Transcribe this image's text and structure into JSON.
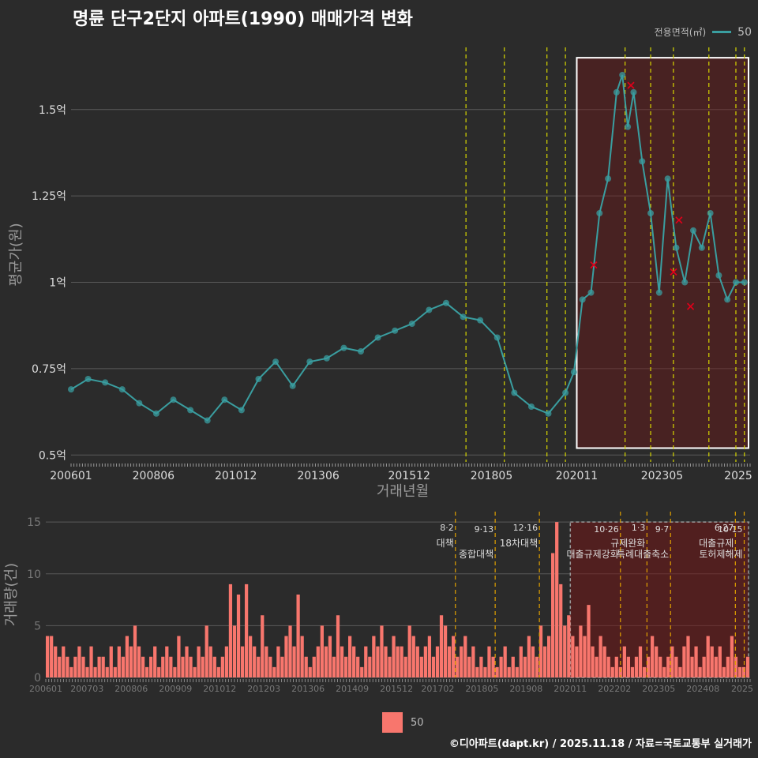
{
  "title": "명륜 단구2단지 아파트(1990) 매매가격 변화",
  "legend": {
    "title": "전용면적(㎡)",
    "series": "50",
    "line_color": "#3a9ea0",
    "bar_color": "#f8766d"
  },
  "footer": "©디아파트(dapt.kr) / 2025.11.18 / 자료=국토교통부 실거래가",
  "chart_data": [
    {
      "type": "line",
      "ylabel": "평균가(원)",
      "xlabel": "거래년월",
      "ylim": [
        0.48,
        1.68
      ],
      "yticks": [
        0.5,
        0.75,
        1.0,
        1.25,
        1.5
      ],
      "ytick_labels": [
        "0.5억",
        "0.75억",
        "1억",
        "1.25억",
        "1.5억"
      ],
      "x_domain": [
        2006.0,
        2025.917
      ],
      "xticks": [
        2006.0,
        2008.417,
        2010.833,
        2013.25,
        2015.917,
        2018.333,
        2020.833,
        2023.333,
        2025.917
      ],
      "xtick_labels": [
        "200601",
        "200806",
        "201012",
        "201306",
        "201512",
        "201805",
        "202011",
        "202305",
        "2025"
      ],
      "series": [
        {
          "name": "50",
          "x": [
            2006.0,
            2006.5,
            2007.0,
            2007.5,
            2008.0,
            2008.5,
            2009.0,
            2009.5,
            2010.0,
            2010.5,
            2011.0,
            2011.5,
            2012.0,
            2012.5,
            2013.0,
            2013.5,
            2014.0,
            2014.5,
            2015.0,
            2015.5,
            2016.0,
            2016.5,
            2017.0,
            2017.5,
            2018.0,
            2018.5,
            2019.0,
            2019.5,
            2020.0,
            2020.5,
            2020.75,
            2021.0,
            2021.25,
            2021.5,
            2021.75,
            2022.0,
            2022.17,
            2022.33,
            2022.5,
            2022.75,
            2023.0,
            2023.25,
            2023.5,
            2023.75,
            2024.0,
            2024.25,
            2024.5,
            2024.75,
            2025.0,
            2025.25,
            2025.5,
            2025.75
          ],
          "values": [
            0.69,
            0.72,
            0.71,
            0.69,
            0.65,
            0.62,
            0.66,
            0.63,
            0.6,
            0.66,
            0.63,
            0.72,
            0.77,
            0.7,
            0.77,
            0.78,
            0.81,
            0.8,
            0.84,
            0.86,
            0.88,
            0.92,
            0.94,
            0.9,
            0.89,
            0.84,
            0.68,
            0.64,
            0.62,
            0.68,
            0.74,
            0.95,
            0.97,
            1.2,
            1.3,
            1.55,
            1.6,
            1.45,
            1.55,
            1.35,
            1.2,
            0.97,
            1.3,
            1.1,
            1.0,
            1.15,
            1.1,
            1.2,
            1.02,
            0.95,
            1.0,
            1.0
          ]
        }
      ],
      "cancelled_points": [
        {
          "x": 2021.33,
          "y": 1.05
        },
        {
          "x": 2022.42,
          "y": 1.57
        },
        {
          "x": 2023.67,
          "y": 1.03
        },
        {
          "x": 2023.83,
          "y": 1.18
        },
        {
          "x": 2024.17,
          "y": 0.93
        }
      ],
      "policy_lines": [
        2017.583,
        2018.708,
        2019.958,
        2020.5,
        2022.25,
        2023.0,
        2023.667,
        2024.708,
        2025.5,
        2025.75
      ]
    },
    {
      "type": "bar",
      "ylabel": "거래량(건)",
      "ylim": [
        0,
        16
      ],
      "yticks": [
        0,
        5,
        10,
        15
      ],
      "ytick_labels": [
        "0",
        "5",
        "10",
        "15"
      ],
      "x_domain": [
        2006.0,
        2025.917
      ],
      "xticks": [
        2006.0,
        2007.167,
        2008.417,
        2009.667,
        2010.917,
        2012.167,
        2013.417,
        2014.667,
        2015.917,
        2017.083,
        2018.333,
        2019.583,
        2020.833,
        2022.083,
        2023.333,
        2024.583,
        2025.833
      ],
      "xtick_labels": [
        "200601",
        "200703",
        "200806",
        "200909",
        "201012",
        "201203",
        "201306",
        "201409",
        "201512",
        "201702",
        "201805",
        "201908",
        "202011",
        "202202",
        "202305",
        "202408",
        "2025"
      ],
      "values": [
        4,
        4,
        3,
        2,
        3,
        2,
        1,
        2,
        3,
        2,
        1,
        3,
        1,
        2,
        2,
        1,
        3,
        1,
        3,
        2,
        4,
        3,
        5,
        3,
        2,
        1,
        2,
        3,
        1,
        2,
        3,
        2,
        1,
        4,
        2,
        3,
        2,
        1,
        3,
        2,
        5,
        3,
        2,
        1,
        2,
        3,
        9,
        5,
        8,
        3,
        9,
        4,
        3,
        2,
        6,
        3,
        2,
        1,
        3,
        2,
        4,
        5,
        3,
        8,
        4,
        2,
        1,
        2,
        3,
        5,
        3,
        4,
        2,
        6,
        3,
        2,
        4,
        3,
        2,
        1,
        3,
        2,
        4,
        3,
        5,
        3,
        2,
        4,
        3,
        3,
        2,
        5,
        4,
        3,
        2,
        3,
        4,
        2,
        3,
        6,
        5,
        3,
        4,
        2,
        3,
        4,
        2,
        3,
        1,
        2,
        1,
        3,
        2,
        1,
        2,
        3,
        1,
        2,
        1,
        3,
        2,
        4,
        3,
        2,
        5,
        3,
        4,
        12,
        15,
        9,
        5,
        6,
        4,
        3,
        5,
        4,
        7,
        3,
        2,
        4,
        3,
        2,
        1,
        2,
        1,
        3,
        2,
        1,
        2,
        3,
        1,
        2,
        4,
        3,
        2,
        1,
        2,
        3,
        2,
        1,
        3,
        4,
        2,
        3,
        1,
        2,
        4,
        3,
        2,
        3,
        1,
        2,
        4,
        2,
        1,
        1,
        2
      ],
      "policy_events": [
        {
          "x": 2017.583,
          "date": "8·2",
          "label": "대책"
        },
        {
          "x": 2018.708,
          "date": "9·13",
          "label": "종합대책"
        },
        {
          "x": 2019.958,
          "date": "12·16",
          "label": "18차대책"
        },
        {
          "x": 2022.25,
          "date": "10·26",
          "label": "대출규제강화"
        },
        {
          "x": 2023.0,
          "date": "1·3",
          "label": "규제완화"
        },
        {
          "x": 2023.667,
          "date": "9·7",
          "label": "특례대출축소"
        },
        {
          "x": 2025.5,
          "date": "6·27",
          "label": "대출규제"
        },
        {
          "x": 2025.75,
          "date": "10·15",
          "label": "토허제해제"
        }
      ]
    }
  ]
}
